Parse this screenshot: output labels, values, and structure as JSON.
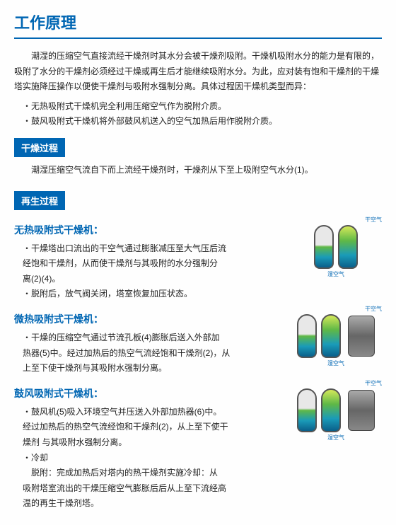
{
  "title": "工作原理",
  "intro": "潮湿的压缩空气直接流经干燥剂时其水分会被干燥剂吸附。干燥机吸附水分的能力是有限的，吸附了水分的干燥剂必须经过干燥或再生后才能继续吸附水分。为此，应对装有饱和干燥剂的干燥塔实施降压操作以便使干燥剂与吸附水强制分离。具体过程因干燥机类型而异：",
  "intro_bullets": [
    "・无热吸附式干燥机完全利用压缩空气作为脱附介质。",
    "・鼓风吸附式干燥机将外部鼓风机送入的空气加热后用作脱附介质。"
  ],
  "drying_section": {
    "title": "干燥过程",
    "text": "潮湿压缩空气流自下而上流经干燥剂时，干燥剂从下至上吸附空气水分(1)。"
  },
  "regen_section": {
    "title": "再生过程"
  },
  "sub1": {
    "title": "无热吸附式干燥机：",
    "lines": [
      "・干燥塔出口流出的干空气通过膨胀减压至大气压后流",
      "经饱和干燥剂，从而使干燥剂与其吸附的水分强制分",
      "离(2)(4)。",
      "・脱附后，放气阀关闭，塔室恢复加压状态。"
    ]
  },
  "sub2": {
    "title": "微热吸附式干燥机：",
    "lines": [
      "・干燥的压缩空气通过节流孔板(4)膨胀后送入外部加",
      "热器(5)中。经过加热后的热空气流经饱和干燥剂(2)，从",
      "上至下使干燥剂与其吸附水强制分离。"
    ]
  },
  "sub3": {
    "title": "鼓风吸附式干燥机：",
    "lines": [
      "・鼓风机(5)吸入环境空气并压送入外部加热器(6)中。",
      "经过加热后的热空气流经饱和干燥剂(2)，从上至下使干",
      "燥剂 与其吸附水强制分离。",
      "・冷却",
      "　脱附：完成加热后对塔内的热干燥剂实施冷却：从",
      "吸附塔室流出的干燥压缩空气膨胀后后从上至下流经高",
      "温的再生干燥剂塔。"
    ]
  },
  "labels": {
    "dry_air": "干空气",
    "wet_air": "湿空气"
  }
}
